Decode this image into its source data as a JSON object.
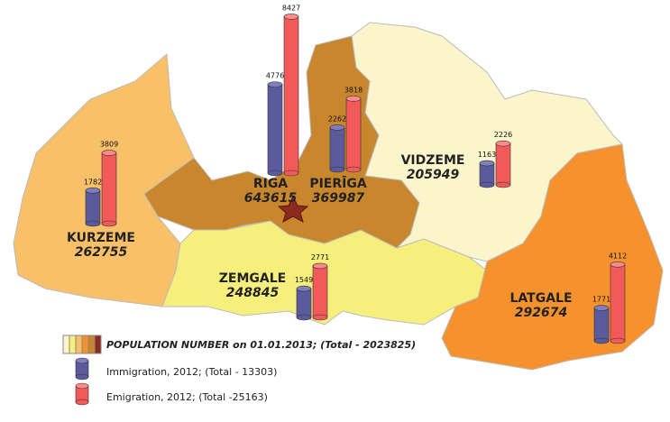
{
  "regions": [
    {
      "name": "RIGA",
      "population": 643615,
      "immigration": 4776,
      "emigration": 8427
    },
    {
      "name": "PIERĪGA",
      "population": 369987,
      "immigration": 2262,
      "emigration": 3818
    },
    {
      "name": "VIDZEME",
      "population": 205949,
      "immigration": 1163,
      "emigration": 2226
    },
    {
      "name": "KURZEME",
      "population": 262755,
      "immigration": 1782,
      "emigration": 3809
    },
    {
      "name": "ZEMGALE",
      "population": 248845,
      "immigration": 1549,
      "emigration": 2771
    },
    {
      "name": "LATGALE",
      "population": 292674,
      "immigration": 1771,
      "emigration": 4112
    }
  ],
  "legend": {
    "population": "POPULATION NUMBER on 01.01.2013; (Total - 2023825)",
    "immigration": "Immigration, 2012; (Total - 13303)",
    "emigration": "Emigration, 2012; (Total -25163)"
  }
}
